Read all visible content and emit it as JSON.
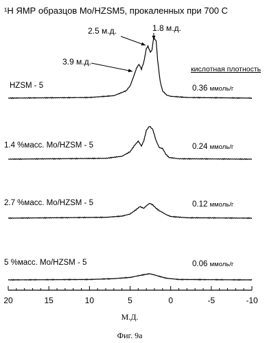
{
  "chart_data": {
    "type": "line",
    "title": "¹H ЯМР образцов Mo/HZSM5, прокаленных при 700 С",
    "xlabel": "М.Д.",
    "xlim": [
      20,
      -10
    ],
    "x_ticks": [
      "20",
      "15",
      "10",
      "5",
      "0",
      "-5",
      "-10"
    ],
    "caption": "Фиг. 9а",
    "acid_header": "кислотная плотность",
    "peak_annotations": [
      {
        "label": "2.5 м.д.",
        "x": 2.5
      },
      {
        "label": "1.8 м.д.",
        "x": 1.8
      },
      {
        "label": "3.9 м.д.",
        "x": 3.9
      }
    ],
    "series": [
      {
        "name": "HZSM - 5",
        "density": "0.36",
        "unit": "ммоль/г",
        "x": [
          20,
          10,
          7,
          5.5,
          5,
          4.5,
          4.2,
          3.9,
          3.6,
          3.3,
          3.0,
          2.8,
          2.5,
          2.3,
          2.1,
          1.8,
          1.6,
          1.3,
          1.0,
          0.5,
          0,
          -2,
          -10
        ],
        "y": [
          0.0,
          0.01,
          0.04,
          0.12,
          0.2,
          0.38,
          0.5,
          0.56,
          0.48,
          0.6,
          0.82,
          0.86,
          0.76,
          0.8,
          1.0,
          0.95,
          0.62,
          0.28,
          0.12,
          0.05,
          0.03,
          0.01,
          0.0
        ]
      },
      {
        "name": "1.4 %масс. Mo/HZSM - 5",
        "density": "0.24",
        "unit": "ммоль/г",
        "x": [
          20,
          8,
          6,
          5,
          4.5,
          4.0,
          3.6,
          3.3,
          3.0,
          2.6,
          2.2,
          1.8,
          1.4,
          1.0,
          0.6,
          0.2,
          -1,
          -10
        ],
        "y": [
          0.0,
          0.02,
          0.07,
          0.18,
          0.32,
          0.44,
          0.32,
          0.45,
          0.7,
          0.8,
          0.72,
          0.45,
          0.28,
          0.26,
          0.12,
          0.04,
          0.01,
          0.0
        ]
      },
      {
        "name": "2.7 %масс. Mo/HZSM - 5",
        "density": "0.12",
        "unit": "ммоль/г",
        "x": [
          20,
          8,
          6,
          5,
          4.3,
          3.8,
          3.3,
          3.0,
          2.6,
          2.2,
          1.8,
          1.4,
          1.0,
          0.5,
          0,
          -2,
          -10
        ],
        "y": [
          0.0,
          0.02,
          0.05,
          0.1,
          0.2,
          0.28,
          0.24,
          0.3,
          0.36,
          0.32,
          0.24,
          0.18,
          0.14,
          0.08,
          0.04,
          0.01,
          0.0
        ]
      },
      {
        "name": "5 %масс. Mo/HZSM - 5",
        "density": "0.06",
        "unit": "ммоль/г",
        "x": [
          20,
          10,
          7,
          5,
          4,
          3.2,
          2.6,
          2.0,
          1.3,
          0.5,
          -1,
          -10
        ],
        "y": [
          0.0,
          0.01,
          0.03,
          0.06,
          0.1,
          0.13,
          0.15,
          0.12,
          0.08,
          0.04,
          0.01,
          0.0
        ]
      }
    ]
  }
}
